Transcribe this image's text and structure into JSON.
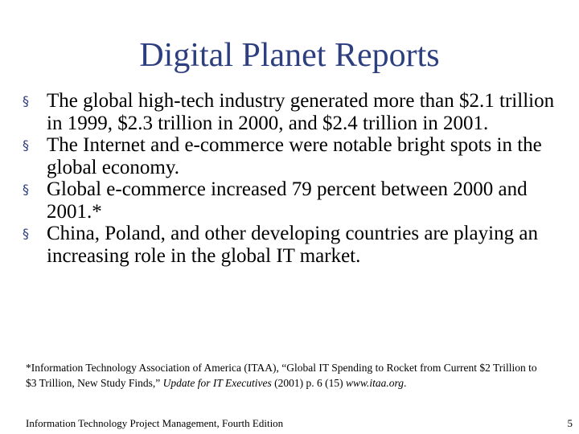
{
  "slide": {
    "title": "Digital Planet Reports",
    "bullet_symbol": "§",
    "bullets": [
      "The global high-tech industry generated more than $2.1 trillion in 1999, $2.3 trillion in 2000, and $2.4 trillion in 2001.",
      "The Internet and e-commerce were notable bright spots in the global economy.",
      "Global e-commerce increased 79 percent between 2000 and 2001.*",
      "China, Poland, and other developing countries are playing an increasing role in the global IT market."
    ],
    "footnote": {
      "text_before": "*Information Technology Association of America (ITAA), “Global IT Spending to Rocket from Current $2 Trillion to $3 Trillion, New Study Finds,” ",
      "publication": "Update for IT Executives",
      "text_after": " (2001) p. 6 (15) ",
      "url": "www.itaa.org",
      "end": "."
    },
    "footer": "Information Technology Project Management, Fourth Edition",
    "page_number": "5"
  },
  "colors": {
    "title": "#2e3f7f",
    "bullet": "#2e3f7f",
    "text": "#000000",
    "background": "#ffffff"
  }
}
